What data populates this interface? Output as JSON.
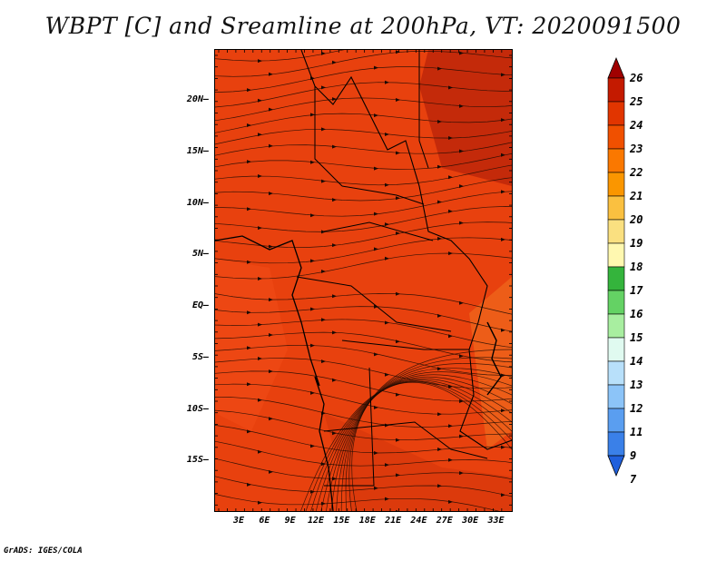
{
  "title": "WBPT [C] and Sreamline at 200hPa, VT: 2020091500",
  "credit": "GrADS: IGES/COLA",
  "map": {
    "lat_labels": [
      "20N",
      "15N",
      "10N",
      "5N",
      "EQ",
      "5S",
      "10S",
      "15S"
    ],
    "lat_values": [
      20,
      15,
      10,
      5,
      0,
      -5,
      -10,
      -15
    ],
    "lon_labels": [
      "3E",
      "6E",
      "9E",
      "12E",
      "15E",
      "18E",
      "21E",
      "24E",
      "27E",
      "30E",
      "33E"
    ],
    "lon_values": [
      3,
      6,
      9,
      12,
      15,
      18,
      21,
      24,
      27,
      30,
      33
    ],
    "base_color": "#e8410e"
  },
  "colorbar": {
    "labels": [
      "26",
      "25",
      "24",
      "23",
      "22",
      "21",
      "20",
      "19",
      "18",
      "17",
      "16",
      "15",
      "14",
      "13",
      "12",
      "11",
      "9",
      "7"
    ],
    "colors": [
      "#a00000",
      "#c41a00",
      "#e13500",
      "#f05000",
      "#fa7800",
      "#fa9600",
      "#fac040",
      "#fae080",
      "#fff8b0",
      "#34b43c",
      "#64d264",
      "#a8eea0",
      "#e0faf0",
      "#b8e0fa",
      "#8cc4f8",
      "#5a9ef0",
      "#3a80e8",
      "#2060dc"
    ]
  }
}
